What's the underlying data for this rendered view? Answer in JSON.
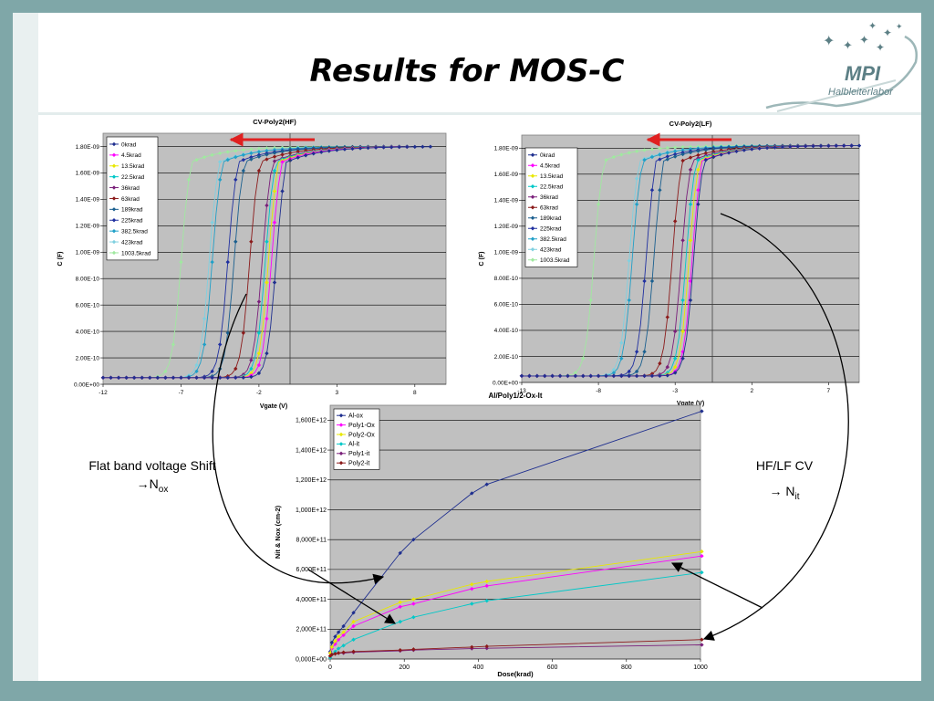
{
  "slide": {
    "title": "Results for MOS-C",
    "logo": {
      "text_main": "MPI",
      "text_sub": "Halbleiterlabor",
      "icon": "stars-swoosh-logo"
    },
    "annotation_left": {
      "line1": "Flat band voltage Shift",
      "arrow": "→",
      "symbol": "N",
      "subscript": "ox"
    },
    "annotation_right": {
      "line1": "HF/LF CV",
      "arrow": "→",
      "symbol": "N",
      "subscript": "it"
    },
    "colors": {
      "frame": "#7fa7a8",
      "plot_bg": "#c0c0c0",
      "red_arrow": "#e02020"
    }
  },
  "chart_data": [
    {
      "type": "line",
      "title": "CV-Poly2(HF)",
      "xlabel": "Vgate (V)",
      "ylabel": "C (F)",
      "xlim": [
        -12,
        10
      ],
      "ylim": [
        0,
        1.9e-09
      ],
      "xticks": [
        "-12",
        "-7",
        "-2",
        "3",
        "8"
      ],
      "xtick_values": [
        -12,
        -7,
        -2,
        3,
        8
      ],
      "yticks": [
        "0.00E+00",
        "2.00E-10",
        "4.00E-10",
        "6.00E-10",
        "8.00E-10",
        "1.00E-09",
        "1.20E-09",
        "1.40E-09",
        "1.60E-09",
        "1.80E-09"
      ],
      "ytick_values": [
        0,
        2e-10,
        4e-10,
        6e-10,
        8e-10,
        1e-09,
        1.2e-09,
        1.4e-09,
        1.6e-09,
        1.8e-09
      ],
      "legend_position": "top-left",
      "grid": true,
      "cmin": 5e-11,
      "cmax": 1.8e-09,
      "series": [
        {
          "name": "0krad",
          "color": "#1f2f8f",
          "vmid": -0.9,
          "x_end": 9.2
        },
        {
          "name": "4.5krad",
          "color": "#ff00ff",
          "vmid": -1.2,
          "x_end": 7.8
        },
        {
          "name": "13.5krad",
          "color": "#e8e800",
          "vmid": -1.4,
          "x_end": 7.8
        },
        {
          "name": "22.5krad",
          "color": "#00c8c8",
          "vmid": -1.6,
          "x_end": 7.8
        },
        {
          "name": "36krad",
          "color": "#7a1f7a",
          "vmid": -1.8,
          "x_end": 7.8
        },
        {
          "name": "63krad",
          "color": "#8b1a1a",
          "vmid": -2.6,
          "x_end": 7.8
        },
        {
          "name": "189krad",
          "color": "#1a5f8f",
          "vmid": -3.6,
          "x_end": 7.8
        },
        {
          "name": "225krad",
          "color": "#2030a0",
          "vmid": -4.0,
          "x_end": 7.8
        },
        {
          "name": "382.5krad",
          "color": "#20a0c8",
          "vmid": -5.0,
          "x_end": 7.8
        },
        {
          "name": "423krad",
          "color": "#80d0e0",
          "vmid": -5.2,
          "x_end": 7.8
        },
        {
          "name": "1003.5krad",
          "color": "#a0e8a0",
          "vmid": -7.0,
          "x_end": 7.8
        }
      ]
    },
    {
      "type": "line",
      "title": "CV-Poly2(LF)",
      "xlabel": "Vgate (V)",
      "ylabel": "C (F)",
      "xlim": [
        -13,
        9
      ],
      "ylim": [
        0,
        1.9e-09
      ],
      "xticks": [
        "-13",
        "-8",
        "-3",
        "2",
        "7"
      ],
      "xtick_values": [
        -13,
        -8,
        -3,
        2,
        7
      ],
      "yticks": [
        "0.00E+00",
        "2.00E-10",
        "4.00E-10",
        "6.00E-10",
        "8.00E-10",
        "1.00E-09",
        "1.20E-09",
        "1.40E-09",
        "1.60E-09",
        "1.80E-09"
      ],
      "ytick_values": [
        0,
        2e-10,
        4e-10,
        6e-10,
        8e-10,
        1e-09,
        1.2e-09,
        1.4e-09,
        1.6e-09,
        1.8e-09
      ],
      "legend_position": "top-left",
      "grid": true,
      "cmin": 5e-11,
      "cmax": 1.82e-09,
      "series": [
        {
          "name": "0krad",
          "color": "#1f2f8f",
          "vmid": -1.8,
          "x_end": 9.0
        },
        {
          "name": "4.5krad",
          "color": "#ff00ff",
          "vmid": -1.9,
          "x_end": 8.5
        },
        {
          "name": "13.5krad",
          "color": "#e8e800",
          "vmid": -2.1,
          "x_end": 8.5
        },
        {
          "name": "22.5krad",
          "color": "#00c8c8",
          "vmid": -2.3,
          "x_end": 8.5
        },
        {
          "name": "36krad",
          "color": "#7a1f7a",
          "vmid": -2.6,
          "x_end": 8.5
        },
        {
          "name": "63krad",
          "color": "#8b1a1a",
          "vmid": -3.2,
          "x_end": 8.5
        },
        {
          "name": "189krad",
          "color": "#1a5f8f",
          "vmid": -4.4,
          "x_end": 8.5
        },
        {
          "name": "225krad",
          "color": "#2030a0",
          "vmid": -4.9,
          "x_end": 8.5
        },
        {
          "name": "382.5krad",
          "color": "#20a0c8",
          "vmid": -5.8,
          "x_end": 8.5
        },
        {
          "name": "423krad",
          "color": "#80d0e0",
          "vmid": -6.0,
          "x_end": 8.5
        },
        {
          "name": "1003.5krad",
          "color": "#a0e8a0",
          "vmid": -8.3,
          "x_end": 8.5
        }
      ]
    },
    {
      "type": "line",
      "title": "Al/Poly1/2-Ox-It",
      "xlabel": "Dose(krad)",
      "ylabel": "Nit & Nox (cm-2)",
      "xlim": [
        0,
        1000
      ],
      "ylim": [
        0,
        1700000000000.0
      ],
      "xticks": [
        "0",
        "200",
        "400",
        "600",
        "800",
        "1000"
      ],
      "xtick_values": [
        0,
        200,
        400,
        600,
        800,
        1000
      ],
      "yticks": [
        "0,000E+00",
        "2,000E+11",
        "4,000E+11",
        "6,000E+11",
        "8,000E+11",
        "1,000E+12",
        "1,200E+12",
        "1,400E+12",
        "1,600E+12"
      ],
      "ytick_values": [
        0,
        200000000000.0,
        400000000000.0,
        600000000000.0,
        800000000000.0,
        1000000000000.0,
        1200000000000.0,
        1400000000000.0,
        1600000000000.0
      ],
      "legend_position": "top-left",
      "grid": true,
      "x": [
        0,
        4.5,
        13.5,
        22.5,
        36,
        63,
        189,
        225,
        382.5,
        423,
        1003.5
      ],
      "series": [
        {
          "name": "Al-ox",
          "color": "#1f2f8f",
          "values": [
            50000000000.0,
            110000000000.0,
            150000000000.0,
            180000000000.0,
            220000000000.0,
            310000000000.0,
            710000000000.0,
            800000000000.0,
            1110000000000.0,
            1170000000000.0,
            1660000000000.0
          ]
        },
        {
          "name": "Poly1-Ox",
          "color": "#ff00ff",
          "values": [
            40000000000.0,
            70000000000.0,
            100000000000.0,
            130000000000.0,
            160000000000.0,
            220000000000.0,
            350000000000.0,
            370000000000.0,
            470000000000.0,
            490000000000.0,
            690000000000.0
          ]
        },
        {
          "name": "Poly2-Ox",
          "color": "#e8e800",
          "values": [
            40000000000.0,
            80000000000.0,
            120000000000.0,
            150000000000.0,
            180000000000.0,
            250000000000.0,
            380000000000.0,
            400000000000.0,
            500000000000.0,
            520000000000.0,
            720000000000.0
          ]
        },
        {
          "name": "Al-it",
          "color": "#00c8c8",
          "values": [
            10000000000.0,
            30000000000.0,
            50000000000.0,
            70000000000.0,
            90000000000.0,
            130000000000.0,
            250000000000.0,
            280000000000.0,
            370000000000.0,
            390000000000.0,
            580000000000.0
          ]
        },
        {
          "name": "Poly1-it",
          "color": "#7a1f7a",
          "values": [
            20000000000.0,
            30000000000.0,
            35000000000.0,
            40000000000.0,
            40000000000.0,
            45000000000.0,
            55000000000.0,
            60000000000.0,
            70000000000.0,
            72000000000.0,
            95000000000.0
          ]
        },
        {
          "name": "Poly2-it",
          "color": "#8b1a1a",
          "values": [
            20000000000.0,
            30000000000.0,
            35000000000.0,
            40000000000.0,
            45000000000.0,
            50000000000.0,
            60000000000.0,
            65000000000.0,
            80000000000.0,
            85000000000.0,
            130000000000.0
          ]
        }
      ]
    }
  ]
}
